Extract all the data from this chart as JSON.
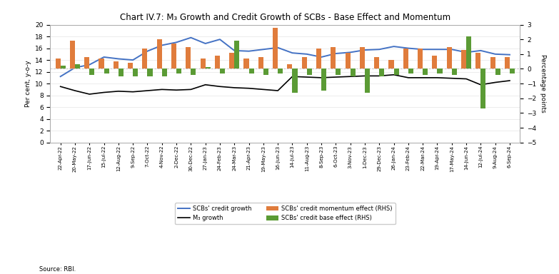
{
  "title": "Chart IV.7: M₃ Growth and Credit Growth of SCBs - Base Effect and Momentum",
  "xlabel_dates": [
    "22-Apr-22",
    "20-May-22",
    "17-Jun-22",
    "15-Jul-22",
    "12-Aug-22",
    "9-Sep-22",
    "7-Oct-22",
    "4-Nov-22",
    "2-Dec-22",
    "30-Dec-22",
    "27-Jan-23",
    "24-Feb-23",
    "24-Mar-23",
    "21-Apr-23",
    "19-May-23",
    "16-Jun-23",
    "14-Jul-23",
    "11-Aug-23",
    "8-Sep-23",
    "6-Oct-23",
    "3-Nov-23",
    "1-Dec-23",
    "29-Dec-23",
    "26-Jan-24",
    "23-Feb-24",
    "22-Mar-24",
    "19-Apr-24",
    "17-May-24",
    "14-Jun-24",
    "12-Jul-24",
    "9-Aug-24",
    "6-Sep-24"
  ],
  "credit_growth": [
    11.2,
    12.7,
    13.2,
    14.5,
    14.2,
    14.0,
    15.5,
    16.5,
    17.0,
    17.8,
    16.8,
    17.5,
    15.6,
    15.5,
    15.8,
    16.1,
    15.2,
    15.0,
    14.5,
    15.1,
    15.3,
    15.7,
    15.8,
    16.3,
    16.0,
    15.8,
    15.8,
    15.8,
    15.3,
    15.6,
    15.0,
    14.9
  ],
  "m3_growth": [
    9.5,
    8.8,
    8.2,
    8.5,
    8.7,
    8.6,
    8.8,
    9.0,
    8.9,
    9.0,
    9.8,
    9.5,
    9.3,
    9.2,
    9.0,
    8.8,
    11.2,
    11.1,
    11.0,
    11.1,
    11.2,
    11.3,
    11.3,
    11.5,
    11.0,
    11.0,
    11.0,
    10.9,
    10.8,
    9.8,
    10.2,
    10.5
  ],
  "credit_momentum_rhs": [
    0.7,
    1.9,
    0.8,
    0.7,
    0.5,
    0.4,
    1.4,
    2.0,
    1.7,
    1.5,
    0.7,
    0.9,
    1.1,
    0.7,
    0.8,
    2.8,
    0.3,
    0.8,
    1.4,
    1.5,
    1.1,
    1.5,
    0.8,
    0.6,
    1.4,
    1.4,
    0.9,
    1.5,
    1.3,
    1.1,
    0.8,
    0.8
  ],
  "credit_base_rhs": [
    0.2,
    0.3,
    -0.4,
    -0.3,
    -0.5,
    -0.5,
    -0.5,
    -0.5,
    -0.3,
    -0.4,
    0.1,
    -0.3,
    1.9,
    -0.3,
    -0.4,
    -0.3,
    -1.6,
    -0.4,
    -1.5,
    -0.4,
    -0.5,
    -1.6,
    -0.5,
    -0.4,
    -0.3,
    -0.4,
    -0.3,
    -0.4,
    2.2,
    -2.7,
    -0.4,
    -0.3
  ],
  "ylim_left": [
    0,
    20
  ],
  "ylim_right": [
    -5,
    3
  ],
  "left_yticks": [
    0,
    2,
    4,
    6,
    8,
    10,
    12,
    14,
    16,
    18,
    20
  ],
  "right_yticks": [
    -5,
    -4,
    -3,
    -2,
    -1,
    0,
    1,
    2,
    3
  ],
  "credit_growth_color": "#4472C4",
  "m3_growth_color": "#000000",
  "momentum_color": "#E07C3C",
  "base_color": "#5B9B35",
  "bg_color": "#FFFFFF"
}
